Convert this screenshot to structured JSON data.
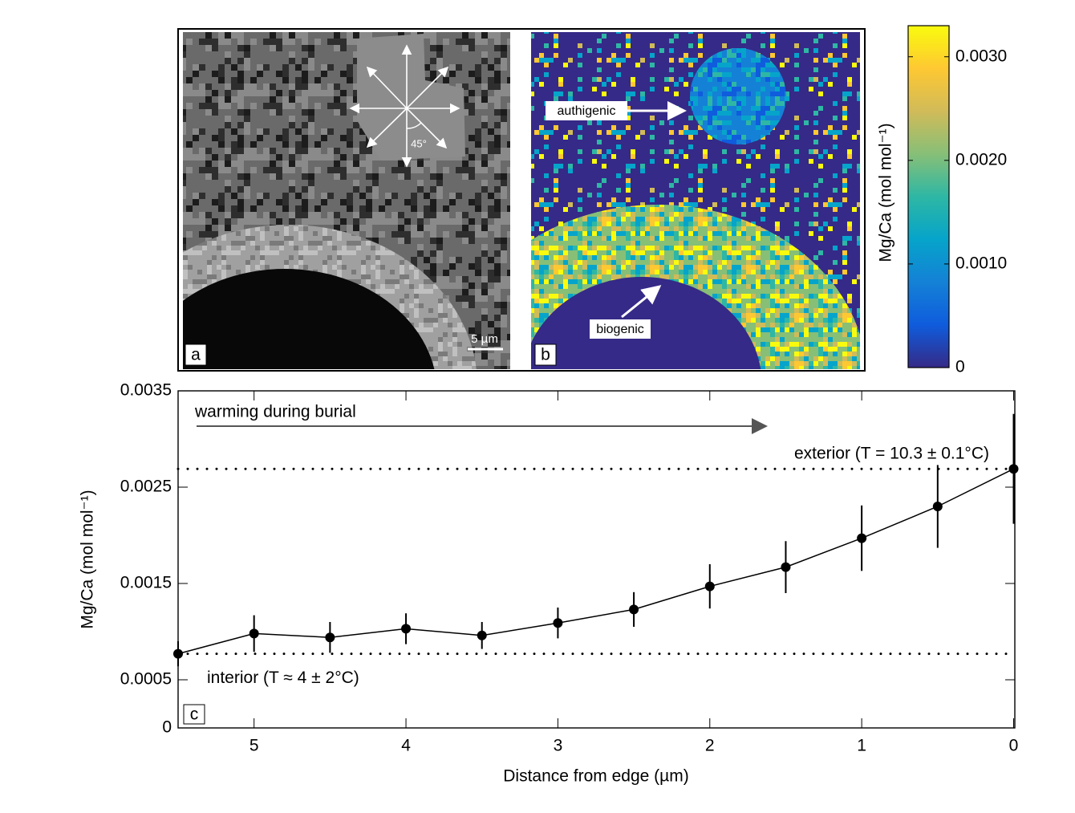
{
  "panels": {
    "a": {
      "label": "a",
      "scale_bar": "5 µm",
      "angle": "45°"
    },
    "b": {
      "label": "b",
      "annotations": [
        "authigenic",
        "biogenic"
      ]
    }
  },
  "colorbar": {
    "label": "Mg/Ca (mol mol⁻¹)",
    "lim": [
      0,
      0.0033
    ],
    "ticks": [
      0,
      {
        "value": 0.001,
        "label": "0.0010"
      },
      {
        "value": 0.002,
        "label": "0.0020"
      },
      {
        "value": 0.003,
        "label": "0.0030"
      }
    ],
    "colors": [
      "#352a87",
      "#0f5cdd",
      "#1481d6",
      "#06a4ca",
      "#2eb7a4",
      "#87bf77",
      "#d1bb59",
      "#fec832",
      "#f9fb0e"
    ]
  },
  "chart_data": {
    "type": "line",
    "panel_label": "c",
    "x_label": "Distance from edge (µm)",
    "y_label": "Mg/Ca (mol mol⁻¹)",
    "annotation": "warming during burial",
    "x": [
      5.5,
      5,
      4.5,
      4,
      3.5,
      3,
      2.5,
      2,
      1.5,
      1,
      0.5,
      0
    ],
    "series": [
      {
        "color": "#000000",
        "values": [
          0.00077,
          0.00098,
          0.00094,
          0.00103,
          0.00096,
          0.00109,
          0.00123,
          0.00147,
          0.00167,
          0.00197,
          0.0023,
          0.00269
        ],
        "errors": [
          0.00013,
          0.00019,
          0.00016,
          0.00016,
          0.00014,
          0.00016,
          0.00018,
          0.00023,
          0.00027,
          0.00034,
          0.00043,
          0.00057
        ]
      }
    ],
    "reference_lines": [
      {
        "value": 0.00269,
        "label": "exterior (T = 10.3 ± 0.1°C)"
      },
      {
        "value": 0.00077,
        "label": "interior (T ≈ 4 ± 2°C)"
      }
    ],
    "xlim": [
      5.5,
      0
    ],
    "xticks": [
      5,
      4,
      3,
      2,
      1,
      0
    ],
    "ylim": [
      0,
      0.0035
    ],
    "yticks": [
      0,
      0.0005,
      0.0015,
      0.0025,
      0.0035
    ]
  }
}
